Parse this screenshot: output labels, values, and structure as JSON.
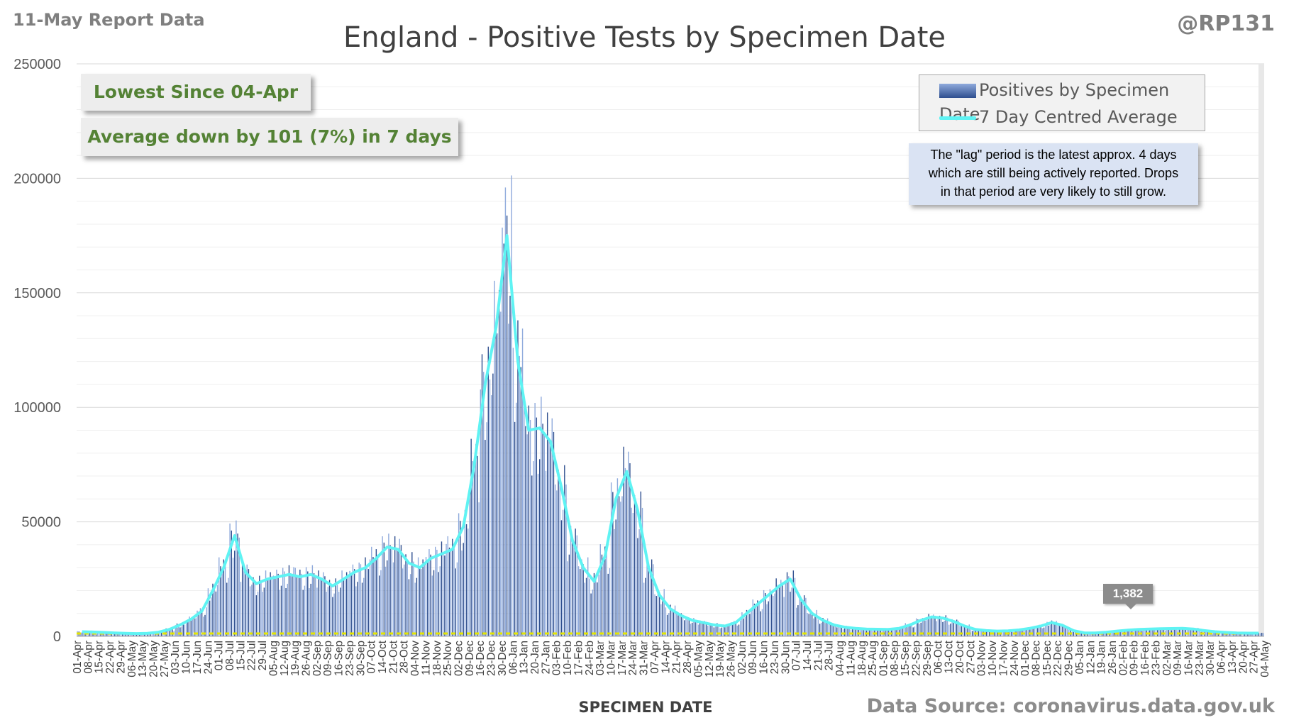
{
  "header": {
    "report_date": "11-May Report Data",
    "handle": "@RP131",
    "source": "Data Source: coronavirus.data.gov.uk"
  },
  "callouts": {
    "lowest": "Lowest Since 04-Apr",
    "average": "Average down by 101 (7%) in 7 days"
  },
  "legend": {
    "bars": "Positives by Specimen Date",
    "line": "7 Day Centred Average"
  },
  "note": {
    "line1": "The \"lag\" period is the latest approx. 4 days",
    "line2": "which are still being actively reported. Drops",
    "line3": "in that period are very likely to still grow."
  },
  "last_value_label": "1,382",
  "colors": {
    "bars": "#2f4f8f",
    "bars_light": "#8faadc",
    "average_line": "#5ff3f3",
    "baseline_dashes": "#e6e600",
    "callout_text": "#548235"
  },
  "chart_data": {
    "type": "bar",
    "title": "England - Positive Tests by Specimen Date",
    "xlabel": "SPECIMEN DATE",
    "ylabel": "",
    "ylim": [
      0,
      250000
    ],
    "yticks": [
      "0",
      "50000",
      "100000",
      "150000",
      "200000",
      "250000"
    ],
    "x_tick_labels": [
      "01-Apr",
      "08-Apr",
      "15-Apr",
      "22-Apr",
      "29-Apr",
      "06-May",
      "13-May",
      "20-May",
      "27-May",
      "03-Jun",
      "10-Jun",
      "17-Jun",
      "24-Jun",
      "01-Jul",
      "08-Jul",
      "15-Jul",
      "22-Jul",
      "29-Jul",
      "05-Aug",
      "12-Aug",
      "19-Aug",
      "26-Aug",
      "02-Sep",
      "09-Sep",
      "16-Sep",
      "23-Sep",
      "30-Sep",
      "07-Oct",
      "14-Oct",
      "21-Oct",
      "28-Oct",
      "04-Nov",
      "11-Nov",
      "18-Nov",
      "25-Nov",
      "02-Dec",
      "09-Dec",
      "16-Dec",
      "23-Dec",
      "30-Dec",
      "06-Jan",
      "13-Jan",
      "20-Jan",
      "27-Jan",
      "03-Feb",
      "10-Feb",
      "17-Feb",
      "24-Feb",
      "03-Mar",
      "10-Mar",
      "17-Mar",
      "24-Mar",
      "31-Mar",
      "07-Apr",
      "14-Apr",
      "21-Apr",
      "28-Apr",
      "05-May",
      "12-May",
      "19-May",
      "26-May",
      "02-Jun",
      "09-Jun",
      "16-Jun",
      "23-Jun",
      "30-Jun",
      "07-Jul",
      "14-Jul",
      "21-Jul",
      "28-Jul",
      "04-Aug",
      "11-Aug",
      "18-Aug",
      "25-Aug",
      "01-Sep",
      "08-Sep",
      "15-Sep",
      "22-Sep",
      "29-Sep",
      "06-Oct",
      "13-Oct",
      "20-Oct",
      "27-Oct",
      "03-Nov",
      "10-Nov",
      "17-Nov",
      "24-Nov",
      "01-Dec",
      "08-Dec",
      "15-Dec",
      "22-Dec",
      "29-Dec",
      "05-Jan",
      "12-Jan",
      "19-Jan",
      "26-Jan",
      "02-Feb",
      "09-Feb",
      "16-Feb",
      "23-Feb",
      "02-Mar",
      "09-Mar",
      "16-Mar",
      "23-Mar",
      "30-Mar",
      "06-Apr",
      "13-Apr",
      "20-Apr",
      "27-Apr",
      "04-May"
    ],
    "weekly_average": [
      2000,
      1900,
      1700,
      1500,
      1300,
      1200,
      1300,
      1800,
      3000,
      5000,
      7500,
      11000,
      20000,
      30000,
      44000,
      28000,
      23000,
      25000,
      26000,
      27000,
      26000,
      27000,
      25000,
      22000,
      25000,
      28000,
      30000,
      34000,
      39000,
      38000,
      32000,
      30000,
      34000,
      36000,
      38000,
      48000,
      75000,
      110000,
      135000,
      175000,
      120000,
      90000,
      91000,
      85000,
      65000,
      42000,
      30000,
      24000,
      35000,
      60000,
      72000,
      55000,
      30000,
      18000,
      12000,
      9000,
      7000,
      6000,
      5000,
      4500,
      6000,
      10000,
      14000,
      18000,
      22000,
      25000,
      16000,
      10000,
      7000,
      5000,
      4000,
      3500,
      3200,
      3100,
      3000,
      3500,
      5000,
      7000,
      8500,
      8000,
      6500,
      4500,
      3000,
      2500,
      2300,
      2400,
      2800,
      3500,
      4500,
      6000,
      4800,
      2500,
      1500,
      1500,
      1800,
      2300,
      2700,
      3000,
      3200,
      3300,
      3400,
      3500,
      3200,
      2500,
      2000,
      1700,
      1500,
      1400,
      1382
    ],
    "series": [
      {
        "name": "Positives by Specimen Date",
        "kind": "bar",
        "resolution": "daily"
      },
      {
        "name": "7 Day Centred Average",
        "kind": "line"
      }
    ],
    "grid": true,
    "legend_position": "top-right"
  }
}
